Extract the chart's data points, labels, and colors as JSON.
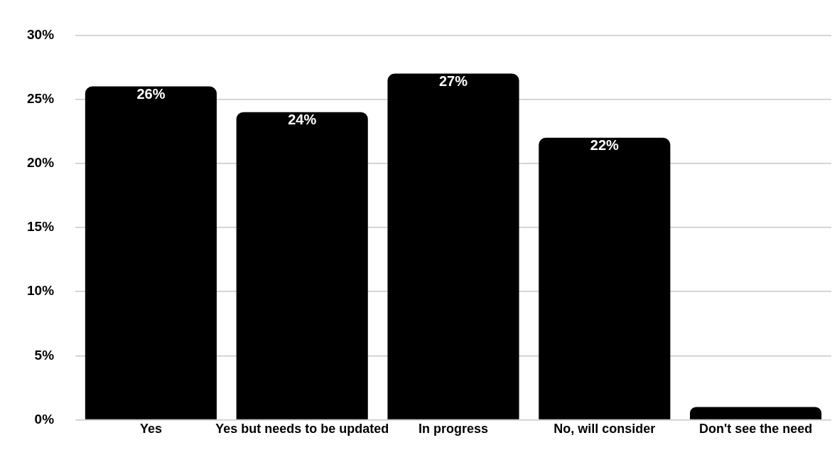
{
  "chart_data": {
    "type": "bar",
    "categories": [
      "Yes",
      "Yes but needs to be updated",
      "In progress",
      "No, will consider",
      "Don't see the need"
    ],
    "values": [
      26,
      24,
      27,
      22,
      1
    ],
    "value_labels": [
      "26%",
      "24%",
      "27%",
      "22%",
      null
    ],
    "color": "#000000",
    "ylim": [
      0,
      30
    ],
    "yticks": [
      {
        "value": 0,
        "label": "0%"
      },
      {
        "value": 5,
        "label": "5%"
      },
      {
        "value": 10,
        "label": "10%"
      },
      {
        "value": 15,
        "label": "15%"
      },
      {
        "value": 20,
        "label": "20%"
      },
      {
        "value": 25,
        "label": "25%"
      },
      {
        "value": 30,
        "label": "30%"
      }
    ],
    "grid": "y"
  }
}
